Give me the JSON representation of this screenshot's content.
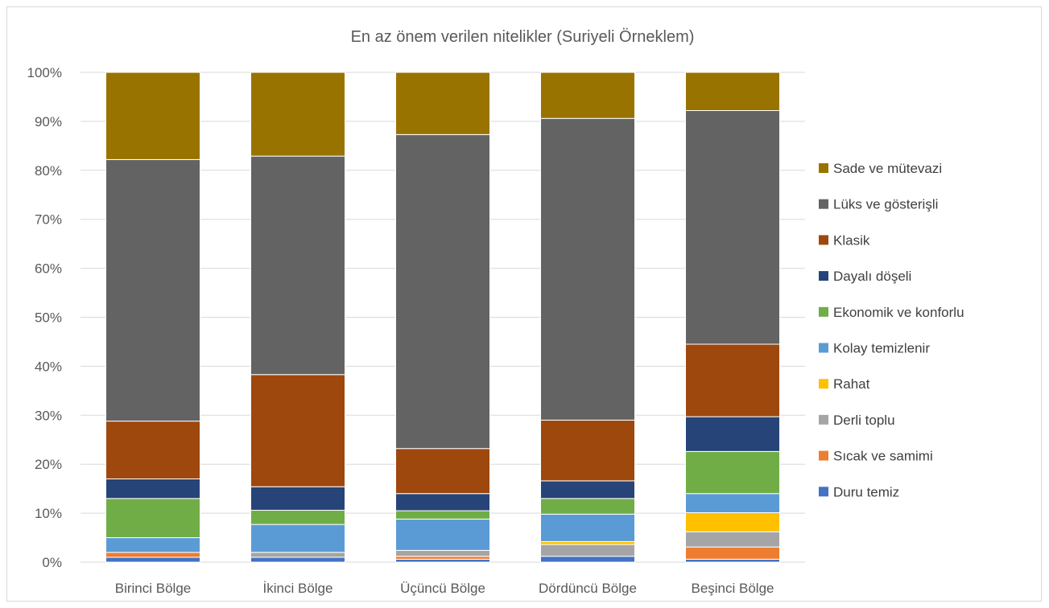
{
  "chart_data": {
    "type": "bar",
    "stacked": "percent",
    "title": "En az önem verilen nitelikler (Suriyeli Örneklem)",
    "xlabel": "",
    "ylabel": "",
    "ylim": [
      0,
      100
    ],
    "y_ticks": [
      "0%",
      "10%",
      "20%",
      "30%",
      "40%",
      "50%",
      "60%",
      "70%",
      "80%",
      "90%",
      "100%"
    ],
    "grid": true,
    "legend_position": "right",
    "categories": [
      "Birinci Bölge",
      "İkinci Bölge",
      "Üçüncü Bölge",
      "Dördüncü Bölge",
      "Beşinci Bölge"
    ],
    "series": [
      {
        "name": "Duru temiz",
        "color": "#4472c4",
        "values": [
          1.0,
          1.0,
          0.6,
          1.2,
          0.6
        ]
      },
      {
        "name": "Sıcak ve samimi",
        "color": "#ed7d31",
        "values": [
          1.0,
          0.0,
          0.6,
          0.0,
          2.5
        ]
      },
      {
        "name": "Derli toplu",
        "color": "#a5a5a5",
        "values": [
          0.0,
          1.0,
          1.2,
          2.4,
          3.1
        ]
      },
      {
        "name": "Rahat",
        "color": "#ffc000",
        "values": [
          0.0,
          0.0,
          0.0,
          0.6,
          3.9
        ]
      },
      {
        "name": "Kolay temizlenir",
        "color": "#5b9bd5",
        "values": [
          3.0,
          5.7,
          6.4,
          5.6,
          3.9
        ]
      },
      {
        "name": "Ekonomik ve konforlu",
        "color": "#70ad47",
        "values": [
          8.0,
          2.9,
          1.7,
          3.2,
          8.6
        ]
      },
      {
        "name": "Dayalı döşeli",
        "color": "#264478",
        "values": [
          4.0,
          4.8,
          3.5,
          3.6,
          7.1
        ]
      },
      {
        "name": "Klasik",
        "color": "#9e480e",
        "values": [
          11.8,
          22.9,
          9.2,
          12.4,
          14.8
        ]
      },
      {
        "name": "Lüks ve gösterişli",
        "color": "#636363",
        "values": [
          53.4,
          44.6,
          64.1,
          61.6,
          47.7
        ]
      },
      {
        "name": "Sade ve mütevazi",
        "color": "#997300",
        "values": [
          17.8,
          17.1,
          12.7,
          9.4,
          7.8
        ]
      }
    ]
  }
}
